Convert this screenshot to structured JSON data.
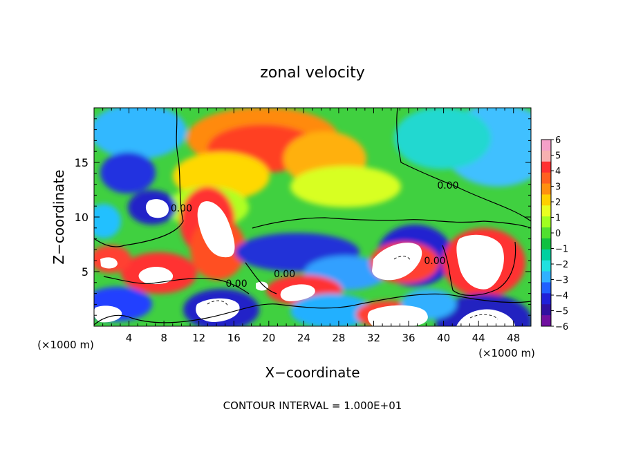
{
  "chart_data": {
    "type": "heatmap",
    "title": "zonal velocity",
    "xlabel": "X−coordinate",
    "ylabel": "Z−coordinate",
    "x_unit": "(×1000 m)",
    "y_unit": "(×1000 m)",
    "xlim": [
      0,
      50
    ],
    "ylim": [
      0,
      20
    ],
    "x_ticks": [
      4,
      8,
      12,
      16,
      20,
      24,
      28,
      32,
      36,
      40,
      44,
      48
    ],
    "y_ticks": [
      5,
      10,
      15
    ],
    "colorbar": {
      "range": [
        -6,
        6
      ],
      "ticks": [
        "6",
        "5",
        "4",
        "3",
        "2",
        "1",
        "0",
        "−1",
        "−2",
        "−3",
        "−4",
        "−5",
        "−6"
      ]
    },
    "contour_labels": [
      {
        "text": "0.00",
        "x": 10.0,
        "y": 10.5
      },
      {
        "text": "0.00",
        "x": 40.5,
        "y": 12.6
      },
      {
        "text": "0.00",
        "x": 21.8,
        "y": 4.5
      },
      {
        "text": "0.00",
        "x": 16.3,
        "y": 3.6
      },
      {
        "text": "0.00",
        "x": 39.0,
        "y": 5.7
      }
    ],
    "footnote": "CONTOUR INTERVAL = 1.000E+01"
  },
  "colors": {
    "colorbar": [
      "#f4a0c8",
      "#f6b0b0",
      "#ff3030",
      "#ff6020",
      "#ff9010",
      "#ffd000",
      "#e8ff20",
      "#a0ff20",
      "#50e030",
      "#10c040",
      "#00d0a0",
      "#20e0e0",
      "#30b0ff",
      "#2060ff",
      "#2020d8",
      "#3010a0",
      "#7010a0"
    ]
  }
}
